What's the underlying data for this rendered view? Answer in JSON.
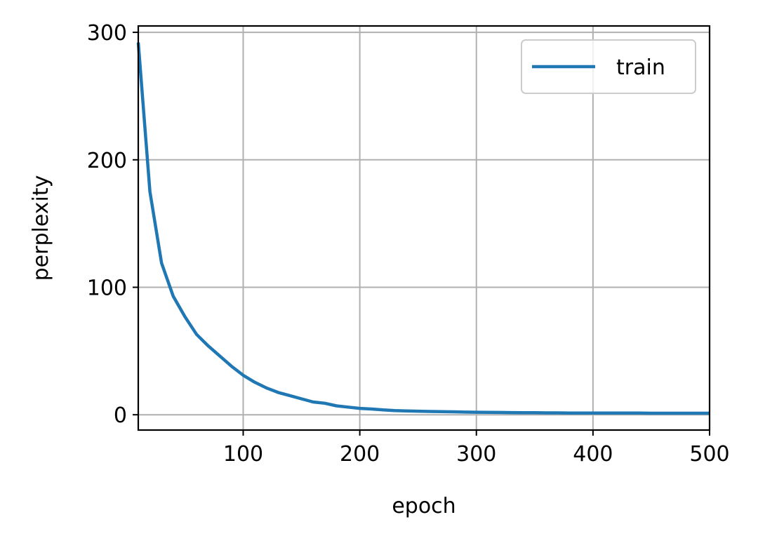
{
  "chart_data": {
    "type": "line",
    "title": "",
    "xlabel": "epoch",
    "ylabel": "perplexity",
    "xlim": [
      10,
      500
    ],
    "ylim": [
      -12,
      305
    ],
    "xticks": [
      100,
      200,
      300,
      400,
      500
    ],
    "yticks": [
      0,
      100,
      200,
      300
    ],
    "grid": true,
    "legend": {
      "position": "top-right"
    },
    "series": [
      {
        "name": "train",
        "color": "#1f77b4",
        "x": [
          10,
          20,
          30,
          40,
          50,
          60,
          70,
          80,
          90,
          100,
          110,
          120,
          130,
          140,
          150,
          160,
          170,
          180,
          190,
          200,
          210,
          220,
          230,
          240,
          250,
          260,
          270,
          280,
          290,
          300,
          310,
          320,
          330,
          340,
          350,
          360,
          370,
          380,
          390,
          400,
          410,
          420,
          430,
          440,
          450,
          460,
          470,
          480,
          490,
          500
        ],
        "y": [
          292,
          175,
          119,
          93,
          77,
          63,
          54,
          46,
          38,
          31,
          25.5,
          21,
          17.5,
          15,
          12.5,
          10,
          9,
          7,
          6,
          5,
          4.5,
          3.8,
          3.3,
          3,
          2.8,
          2.6,
          2.4,
          2.3,
          2.1,
          2,
          1.9,
          1.8,
          1.7,
          1.6,
          1.6,
          1.5,
          1.5,
          1.4,
          1.4,
          1.4,
          1.3,
          1.3,
          1.3,
          1.3,
          1.2,
          1.2,
          1.2,
          1.2,
          1.2,
          1.2
        ]
      }
    ]
  }
}
